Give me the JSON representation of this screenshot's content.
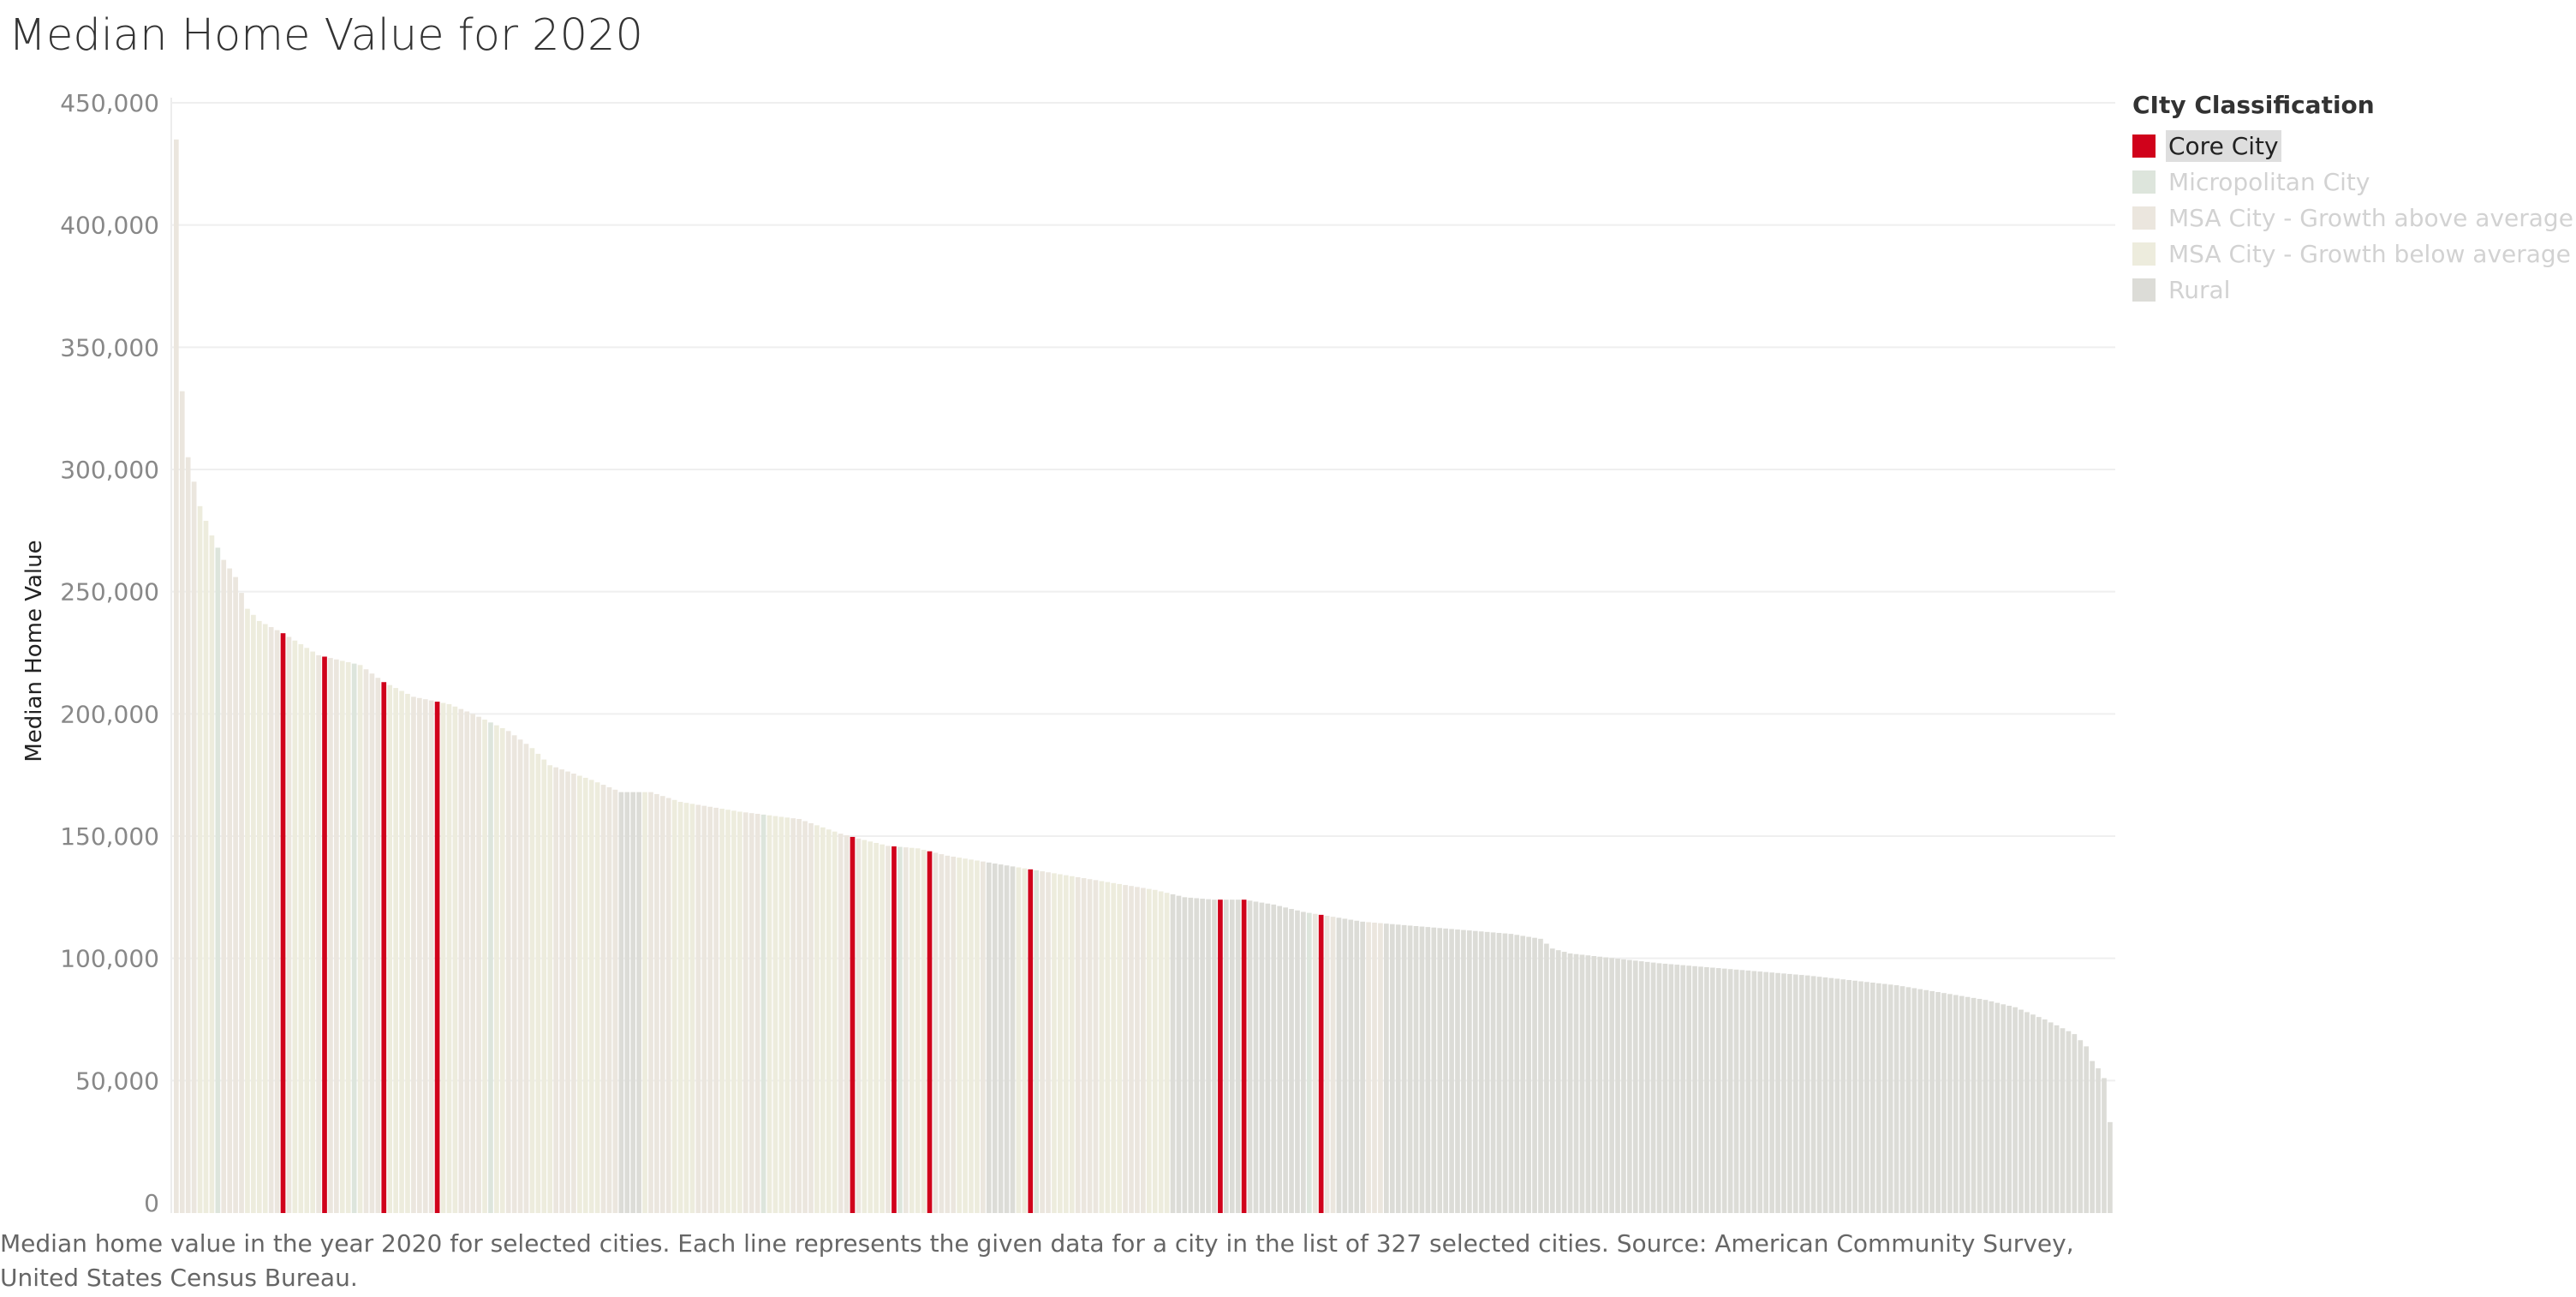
{
  "chart_data": {
    "type": "bar",
    "title": "Median Home Value for 2020",
    "xlabel": "",
    "ylabel": "Median Home Value",
    "ylim": [
      0,
      450000
    ],
    "yticks": [
      0,
      50000,
      100000,
      150000,
      200000,
      250000,
      300000,
      350000,
      400000,
      450000
    ],
    "ytick_labels": [
      "0",
      "50,000",
      "100,000",
      "150,000",
      "200,000",
      "250,000",
      "300,000",
      "350,000",
      "400,000",
      "450,000"
    ],
    "grid": true,
    "legend_position": "top-right",
    "legend_title": "CIty Classification",
    "categories": [
      {
        "name": "Core City",
        "color": "#d0021b"
      },
      {
        "name": "Micropolitan City",
        "color": "#dde5dc"
      },
      {
        "name": "MSA City - Growth above average",
        "color": "#ebe6de"
      },
      {
        "name": "MSA City - Growth below average",
        "color": "#edecdd"
      },
      {
        "name": "Rural",
        "color": "#dcdcd7"
      }
    ],
    "num_cities": 327,
    "anchors": [
      [
        0,
        435000
      ],
      [
        1,
        332000
      ],
      [
        2,
        305000
      ],
      [
        4,
        285000
      ],
      [
        6,
        273000
      ],
      [
        8,
        263000
      ],
      [
        10,
        256000
      ],
      [
        12,
        243000
      ],
      [
        14,
        238000
      ],
      [
        18,
        233000
      ],
      [
        24,
        224000
      ],
      [
        31,
        220000
      ],
      [
        35,
        213000
      ],
      [
        40,
        207000
      ],
      [
        46,
        204000
      ],
      [
        50,
        200000
      ],
      [
        56,
        193000
      ],
      [
        60,
        186000
      ],
      [
        63,
        179000
      ],
      [
        70,
        173000
      ],
      [
        75,
        168000
      ],
      [
        80,
        168000
      ],
      [
        85,
        164000
      ],
      [
        95,
        160000
      ],
      [
        105,
        157000
      ],
      [
        112,
        151000
      ],
      [
        115,
        149000
      ],
      [
        120,
        146000
      ],
      [
        125,
        145000
      ],
      [
        130,
        142000
      ],
      [
        135,
        140000
      ],
      [
        140,
        138000
      ],
      [
        145,
        136000
      ],
      [
        155,
        132000
      ],
      [
        165,
        128000
      ],
      [
        170,
        125000
      ],
      [
        175,
        124000
      ],
      [
        180,
        124000
      ],
      [
        185,
        122000
      ],
      [
        190,
        119000
      ],
      [
        195,
        117000
      ],
      [
        200,
        115000
      ],
      [
        215,
        112000
      ],
      [
        225,
        110000
      ],
      [
        230,
        108000
      ],
      [
        232,
        104000
      ],
      [
        235,
        102000
      ],
      [
        250,
        98000
      ],
      [
        260,
        96000
      ],
      [
        275,
        93000
      ],
      [
        290,
        89000
      ],
      [
        305,
        83000
      ],
      [
        310,
        80000
      ],
      [
        315,
        75000
      ],
      [
        320,
        69000
      ],
      [
        322,
        64000
      ],
      [
        323,
        58000
      ],
      [
        324,
        55000
      ],
      [
        325,
        51000
      ],
      [
        326,
        33000
      ]
    ],
    "core_city_positions": [
      18,
      25,
      35,
      44,
      114,
      121,
      127,
      144,
      176,
      180,
      193
    ],
    "rural_segments": [
      [
        75,
        78
      ],
      [
        137,
        141
      ],
      [
        168,
        190
      ],
      [
        196,
        200
      ],
      [
        204,
        326
      ]
    ]
  },
  "legend": {
    "title": "CIty Classification",
    "items": [
      {
        "label": "Core City",
        "color": "#d0021b"
      },
      {
        "label": "Micropolitan City",
        "color": "#dde5dc"
      },
      {
        "label": "MSA City - Growth above average",
        "color": "#ebe6de"
      },
      {
        "label": "MSA City - Growth below average",
        "color": "#edecdd"
      },
      {
        "label": "Rural",
        "color": "#dcdcd7"
      }
    ]
  },
  "caption": "Median home value in the year 2020 for selected cities. Each line represents the given data for a city in the list of 327 selected cities. Source: American Community Survey, United States Census Bureau."
}
